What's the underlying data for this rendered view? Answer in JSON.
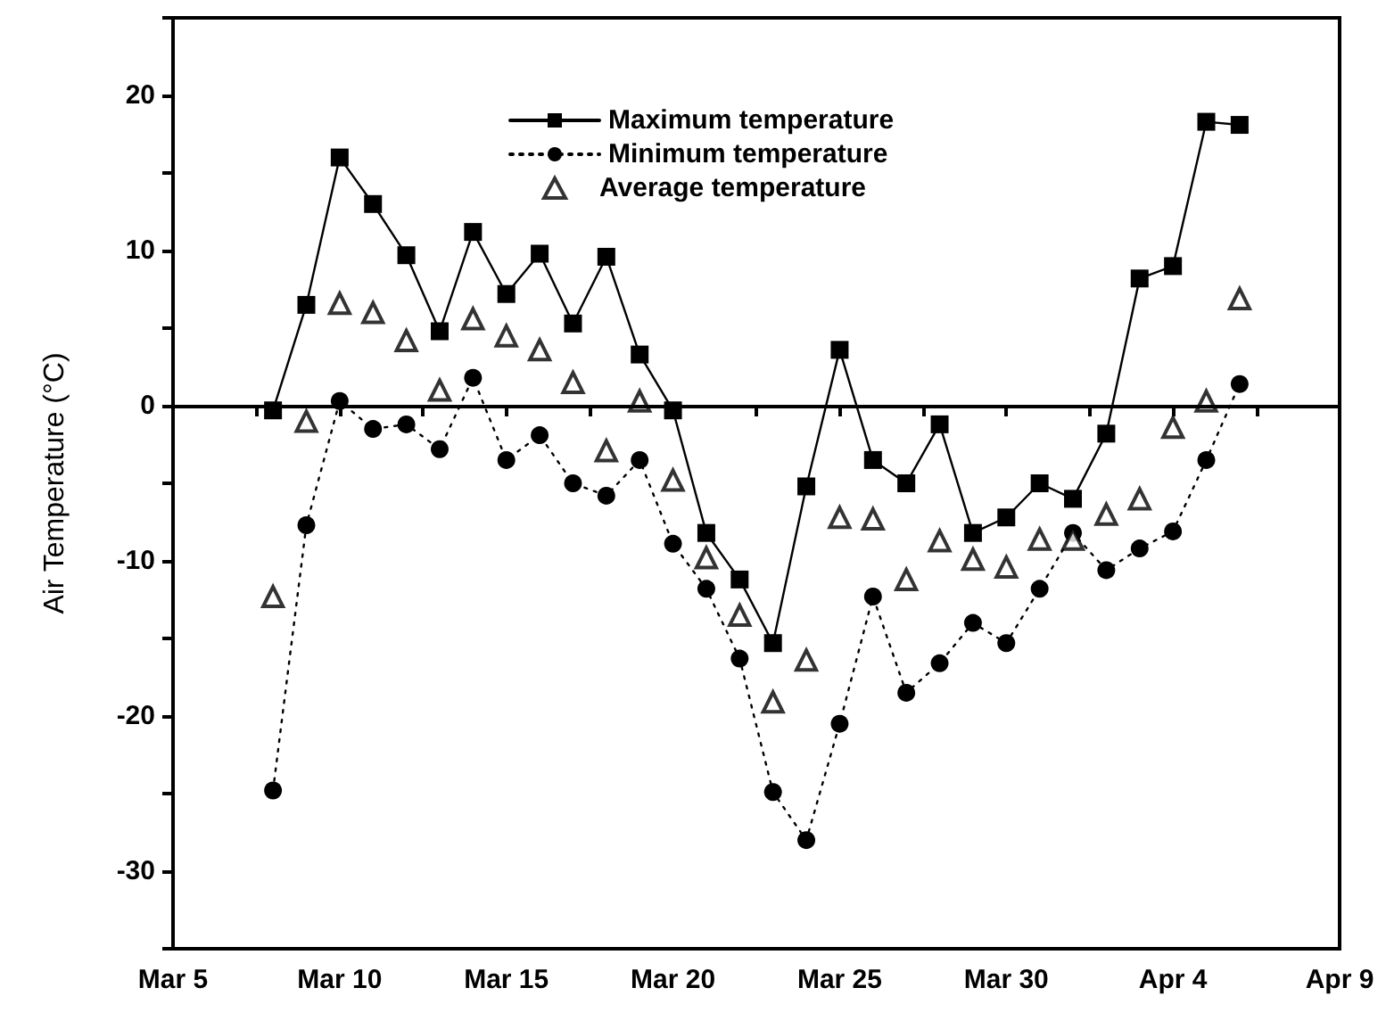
{
  "chart_data": {
    "type": "line",
    "ylabel": "Air Temperature (°C)",
    "x": [
      "--03-08",
      "--03-09",
      "--03-10",
      "--03-11",
      "--03-12",
      "--03-13",
      "--03-14",
      "--03-15",
      "--03-16",
      "--03-17",
      "--03-18",
      "--03-19",
      "--03-20",
      "--03-21",
      "--03-22",
      "--03-23",
      "--03-24",
      "--03-25",
      "--03-26",
      "--03-27",
      "--03-28",
      "--03-29",
      "--03-30",
      "--03-31",
      "--04-01",
      "--04-02",
      "--04-03",
      "--04-04",
      "--04-05",
      "--04-06"
    ],
    "series": [
      {
        "name": "Maximum temperature",
        "color": "#000000",
        "marker": "square",
        "line_style": "solid",
        "values": [
          -0.3,
          6.5,
          16,
          13,
          9.7,
          4.8,
          11.2,
          7.2,
          9.8,
          5.3,
          9.6,
          3.3,
          -0.3,
          -8.2,
          -11.2,
          -15.3,
          -5.2,
          3.6,
          -3.5,
          -5,
          -1.2,
          -8.2,
          -7.2,
          -5,
          -6,
          -1.8,
          8.2,
          9,
          18.3,
          18.1
        ]
      },
      {
        "name": "Minimum temperature",
        "color": "#000000",
        "marker": "circle",
        "line_style": "dotted",
        "values": [
          -24.8,
          -7.7,
          0.3,
          -1.5,
          -1.2,
          -2.8,
          1.8,
          -3.5,
          -1.9,
          -5,
          -5.8,
          -3.5,
          -8.9,
          -11.8,
          -16.3,
          -24.9,
          -28,
          -20.5,
          -12.3,
          -18.5,
          -16.6,
          -14,
          -15.3,
          -11.8,
          -8.2,
          -10.6,
          -9.2,
          -8.1,
          -3.5,
          1.4
        ]
      },
      {
        "name": "Average temperature",
        "type": "scatter",
        "color": "#000000",
        "marker": "triangle",
        "values": [
          -12.3,
          -1,
          6.6,
          6,
          4.2,
          1,
          5.6,
          4.5,
          3.6,
          1.5,
          -2.9,
          0.3,
          -4.8,
          -9.8,
          -13.5,
          -19.1,
          -16.4,
          -7.2,
          -7.3,
          -11.2,
          -8.7,
          -9.9,
          -10.4,
          -8.6,
          -8.6,
          -7,
          -6,
          -1.4,
          0.3,
          6.9
        ]
      }
    ],
    "xlim": [
      "--03-05",
      "--04-09"
    ],
    "xticks": [
      {
        "value": "--03-05",
        "label": "Mar 5"
      },
      {
        "value": "--03-07T12:00",
        "label": null
      },
      {
        "value": "--03-10",
        "label": "Mar 10"
      },
      {
        "value": "--03-12T12:00",
        "label": null
      },
      {
        "value": "--03-15",
        "label": "Mar 15"
      },
      {
        "value": "--03-17T12:00",
        "label": null
      },
      {
        "value": "--03-20",
        "label": "Mar 20"
      },
      {
        "value": "--03-22T12:00",
        "label": null
      },
      {
        "value": "--03-25",
        "label": "Mar 25"
      },
      {
        "value": "--03-27T12:00",
        "label": null
      },
      {
        "value": "--03-30",
        "label": "Mar 30"
      },
      {
        "value": "--04-01T12:00",
        "label": null
      },
      {
        "value": "--04-04",
        "label": "Apr 4"
      },
      {
        "value": "--04-06T12:00",
        "label": null
      },
      {
        "value": "--04-09",
        "label": "Apr 9"
      }
    ],
    "ylim": [
      -35,
      25
    ],
    "yticks": [
      {
        "value": -35,
        "label": null
      },
      -30,
      {
        "value": -25,
        "label": null
      },
      -20,
      {
        "value": -15,
        "label": null
      },
      -10,
      {
        "value": -5,
        "label": null
      },
      0,
      {
        "value": 5,
        "label": null
      },
      10,
      {
        "value": 15,
        "label": null
      },
      20,
      {
        "value": 25,
        "label": null
      }
    ],
    "ref_lines": [
      {
        "axis": "y",
        "value": 0,
        "color": "#000000"
      }
    ],
    "legend": "top",
    "grid": false
  }
}
